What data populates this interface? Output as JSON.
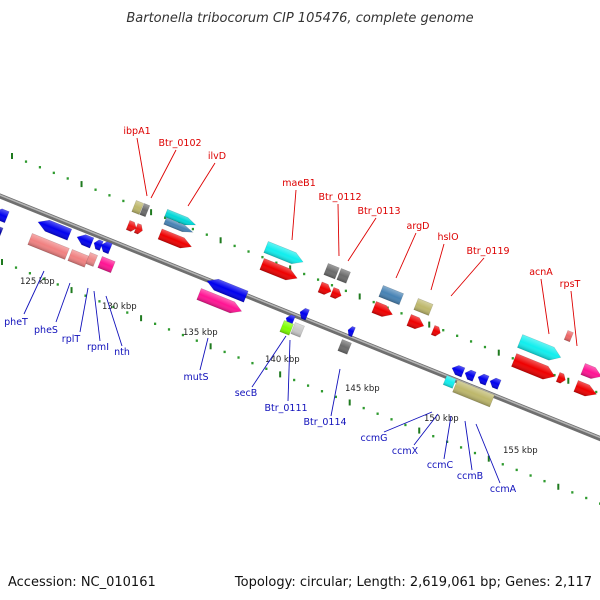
{
  "title": "Bartonella tribocorum CIP 105476, complete genome",
  "footer": {
    "accession": "Accession: NC_010161",
    "topology": "Topology: circular; Length: 2,619,061 bp; Genes: 2,117"
  },
  "colors": {
    "backbone": "#8a8a8a",
    "tick_green": "#228b22",
    "label_top": "#dd0000",
    "label_bottom": "#1111bb"
  },
  "scale_labels": [
    "125 kbp",
    "130 kbp",
    "135 kbp",
    "140 kbp",
    "145 kbp",
    "150 kbp",
    "155 kbp"
  ],
  "genes_top": [
    "ibpA1",
    "Btr_0102",
    "ilvD",
    "maeB1",
    "Btr_0112",
    "Btr_0113",
    "argD",
    "hslO",
    "Btr_0119",
    "acnA",
    "rpsT"
  ],
  "genes_bottom": [
    "pheT",
    "pheS",
    "rplT",
    "rpmI",
    "nth",
    "mutS",
    "secB",
    "Btr_0111",
    "Btr_0114",
    "ccmG",
    "ccmX",
    "ccmC",
    "ccmB",
    "ccmA"
  ]
}
